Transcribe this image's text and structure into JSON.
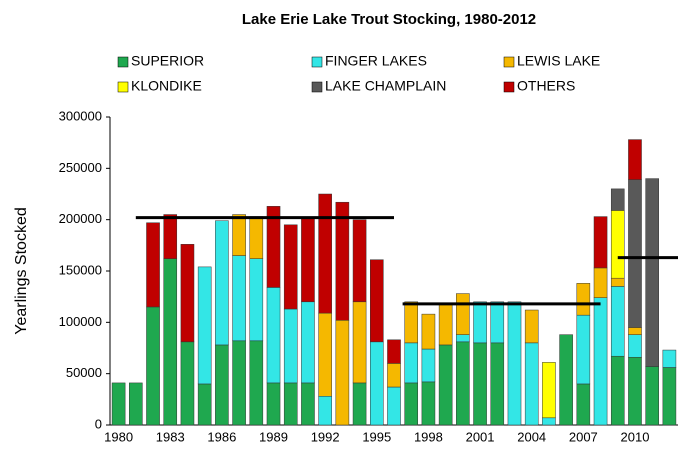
{
  "chart_data": {
    "type": "stacked_bar",
    "title": "Lake Erie Lake Trout Stocking, 1980-2012",
    "y_label": "Yearlings Stocked",
    "categories": [
      "1980",
      null,
      null,
      "1983",
      null,
      null,
      "1986",
      null,
      null,
      "1989",
      null,
      null,
      "1992",
      null,
      null,
      "1995",
      null,
      null,
      "1998",
      null,
      null,
      "2001",
      null,
      null,
      "2004",
      null,
      null,
      "2007",
      null,
      null,
      "2010",
      null,
      null
    ],
    "series": [
      {
        "name": "SUPERIOR",
        "color": "#1fa84f",
        "values": [
          41000,
          41000,
          115000,
          162000,
          81000,
          40000,
          78000,
          82000,
          82000,
          41000,
          41000,
          41000,
          null,
          null,
          41000,
          null,
          null,
          41000,
          42000,
          78000,
          81000,
          80000,
          80000,
          null,
          null,
          null,
          88000,
          40000,
          null,
          67000,
          66000,
          57000,
          56000
        ]
      },
      {
        "name": "FINGER LAKES",
        "color": "#33e6e6",
        "values": [
          null,
          null,
          null,
          null,
          null,
          114000,
          121000,
          83000,
          80000,
          93000,
          72000,
          79000,
          28000,
          null,
          null,
          81000,
          37000,
          39000,
          32000,
          null,
          7000,
          40000,
          40000,
          120000,
          80000,
          7000,
          null,
          67000,
          124000,
          68000,
          22000,
          null,
          17000
        ]
      },
      {
        "name": "LEWIS LAKE",
        "color": "#f5b800",
        "values": [
          null,
          null,
          null,
          null,
          null,
          null,
          null,
          40000,
          41000,
          null,
          null,
          null,
          81000,
          102000,
          79000,
          null,
          23000,
          40000,
          34000,
          40000,
          40000,
          null,
          null,
          null,
          32000,
          null,
          null,
          31000,
          29000,
          8000,
          7000,
          null,
          null
        ]
      },
      {
        "name": "KLONDIKE",
        "color": "#ffff00",
        "values": [
          null,
          null,
          null,
          null,
          null,
          null,
          null,
          null,
          null,
          null,
          null,
          null,
          null,
          null,
          null,
          null,
          null,
          null,
          null,
          null,
          null,
          null,
          null,
          null,
          null,
          54000,
          null,
          null,
          null,
          66000,
          null,
          null,
          null
        ]
      },
      {
        "name": "LAKE CHAMPLAIN",
        "color": "#595959",
        "values": [
          null,
          null,
          null,
          null,
          null,
          null,
          null,
          null,
          null,
          null,
          null,
          null,
          null,
          null,
          null,
          null,
          null,
          null,
          null,
          null,
          null,
          null,
          null,
          null,
          null,
          null,
          null,
          null,
          null,
          21000,
          144000,
          183000,
          null
        ]
      },
      {
        "name": "OTHERS",
        "color": "#c00000",
        "values": [
          null,
          null,
          82000,
          43000,
          95000,
          null,
          null,
          null,
          null,
          79000,
          82000,
          81000,
          116000,
          115000,
          80000,
          80000,
          23000,
          null,
          null,
          null,
          null,
          null,
          null,
          null,
          null,
          null,
          null,
          null,
          50000,
          null,
          39000,
          null,
          null
        ]
      }
    ],
    "average_lines": [
      {
        "start": 1981,
        "end": 1996,
        "value": 202000
      },
      {
        "start": 1996.5,
        "end": 2008,
        "value": 118000
      },
      {
        "start": 2009,
        "end": 2012.5,
        "value": 163000
      }
    ],
    "ylim": [
      0,
      300000
    ],
    "yticks": [
      0,
      50000,
      100000,
      150000,
      200000,
      250000,
      300000
    ]
  }
}
